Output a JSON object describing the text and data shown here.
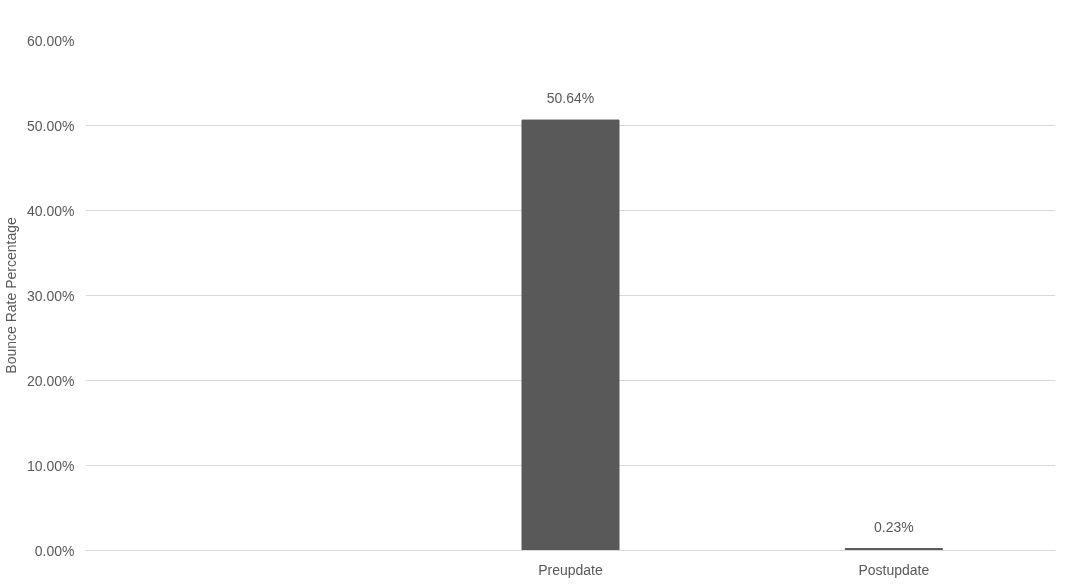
{
  "chart_data": {
    "type": "bar",
    "ylabel": "Bounce Rate Percentage",
    "categories": [
      null,
      "Preupdate",
      "Postupdate"
    ],
    "values": [
      null,
      50.64,
      0.23
    ],
    "value_labels": [
      null,
      "50.64%",
      "0.23%"
    ],
    "color": "#595959",
    "ylim": [
      0,
      60
    ],
    "yticks": [
      {
        "value": 0,
        "label": "0.00%"
      },
      {
        "value": 10,
        "label": "10.00%"
      },
      {
        "value": 20,
        "label": "20.00%"
      },
      {
        "value": 30,
        "label": "30.00%"
      },
      {
        "value": 40,
        "label": "40.00%"
      },
      {
        "value": 50,
        "label": "50.00%"
      },
      {
        "value": 60,
        "label": "60.00%"
      }
    ],
    "grid": "y"
  }
}
